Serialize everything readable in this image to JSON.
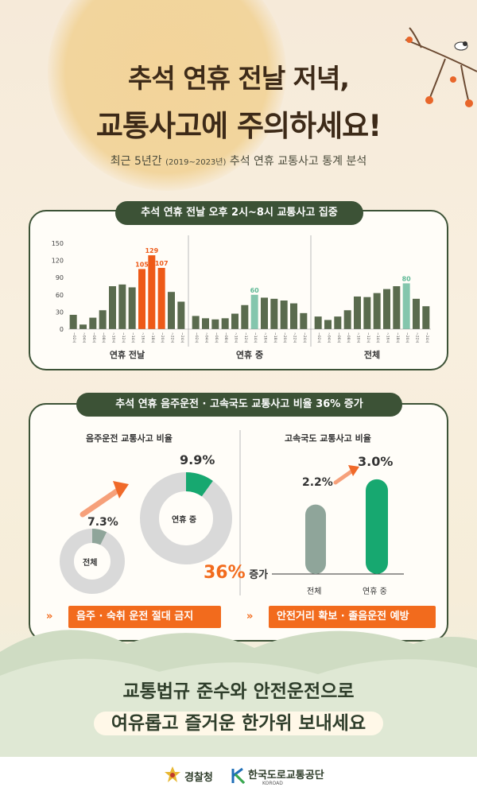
{
  "header": {
    "title_line1": "추석 연휴 전날 저녁,",
    "title_line2": "교통사고에 주의하세요!",
    "subtitle_prefix": "최근 5년간 ",
    "subtitle_period": "(2019~2023년)",
    "subtitle_suffix": " 추석 연휴 교통사고 통계 분석"
  },
  "section1": {
    "pill": "추석 연휴 전날 오후 2시~8시 교통사고 집중"
  },
  "chart_data": [
    {
      "type": "bar",
      "title": "추석 연휴 전날 오후 2시~8시 교통사고 집중",
      "ylim": [
        0,
        150
      ],
      "yticks": [
        0,
        30,
        60,
        90,
        120,
        150
      ],
      "categories": [
        "~02시",
        "~04시",
        "~06시",
        "~08시",
        "~10시",
        "~12시",
        "~14시",
        "~16시",
        "~18시",
        "~20시",
        "~22시",
        "~24시"
      ],
      "series": [
        {
          "name": "연휴 전날",
          "values": [
            25,
            8,
            20,
            33,
            75,
            78,
            73,
            105,
            129,
            107,
            65,
            48
          ],
          "highlight": [
            7,
            8,
            9
          ],
          "labels": {
            "7": "105",
            "8": "129",
            "9": "107"
          }
        },
        {
          "name": "연휴 중",
          "values": [
            23,
            19,
            17,
            19,
            27,
            42,
            60,
            55,
            53,
            50,
            45,
            28
          ],
          "highlight": [
            6
          ],
          "labels": {
            "6": "60"
          }
        },
        {
          "name": "전체",
          "values": [
            22,
            16,
            22,
            33,
            57,
            56,
            63,
            70,
            75,
            80,
            53,
            40
          ],
          "highlight": [
            9
          ],
          "labels": {
            "9": "80"
          }
        }
      ],
      "colors": {
        "normal": "#5a6b4e",
        "peak": "#ee5a18",
        "mint": "#84c6ad"
      }
    },
    {
      "type": "pie",
      "title": "음주운전 교통사고 비율",
      "series": [
        {
          "name": "전체",
          "value": 7.3,
          "label": "7.3%"
        },
        {
          "name": "연휴 중",
          "value": 9.9,
          "label": "9.9%"
        }
      ]
    },
    {
      "type": "bar",
      "title": "고속국도 교통사고 비율",
      "categories": [
        "전체",
        "연휴 중"
      ],
      "values": [
        2.2,
        3.0
      ],
      "labels": [
        "2.2%",
        "3.0%"
      ],
      "ylim": [
        0,
        3.6
      ]
    }
  ],
  "section2": {
    "pill": "추석 연휴 음주운전 · 고속국도 교통사고 비율 36% 증가",
    "left_title": "음주운전 교통사고 비율",
    "right_title": "고속국도 교통사고 비율",
    "donut_small_label": "전체",
    "donut_large_label": "연휴 중",
    "increase_num": "36%",
    "increase_text": " 증가",
    "callout_left": "음주 · 숙취 운전 절대 금지",
    "callout_right": "안전거리 확보 · 졸음운전 예방",
    "chevron": "»"
  },
  "closing": {
    "line1": "교통법규 준수와 안전운전으로",
    "line2": "여유롭고 즐거운 한가위 보내세요"
  },
  "footer": {
    "police": "경찰청",
    "koroad": "한국도로교통공단",
    "koroad_en": "KOROAD"
  },
  "colors": {
    "accent": "#f26b1d",
    "dark_green": "#3c5236",
    "bright_green": "#17a870",
    "gray_green": "#8fa59a",
    "donut_gray": "#d9d9d9"
  }
}
